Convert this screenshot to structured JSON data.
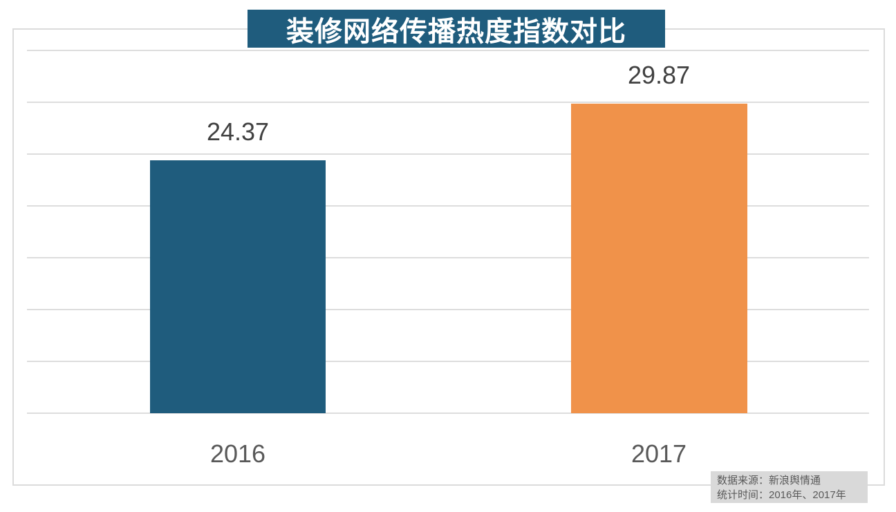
{
  "title": "装修网络传播热度指数对比",
  "chart_data": {
    "type": "bar",
    "title": "装修网络传播热度指数对比",
    "categories": [
      "2016",
      "2017"
    ],
    "values": [
      24.37,
      29.87
    ],
    "value_labels": [
      "24.37",
      "29.87"
    ],
    "xlabel": "",
    "ylabel": "",
    "ylim": [
      0,
      35
    ],
    "grid_step": 5,
    "grid": true,
    "legend": false,
    "bar_colors": [
      "#1f5c7d",
      "#f0924a"
    ]
  },
  "colors": {
    "title_bg": "#1f5c7d",
    "title_text": "#ffffff",
    "bar_2016": "#1f5c7d",
    "bar_2017": "#f0924a",
    "gridline": "#dddddd",
    "frame_border": "#dbdbdb",
    "value_label_text": "#404040",
    "axis_label_text": "#595959",
    "footer_bg": "#d9d9d9",
    "footer_text": "#595959"
  },
  "footer": {
    "source_line": "数据来源：新浪舆情通",
    "time_line": "统计时间：2016年、2017年"
  }
}
